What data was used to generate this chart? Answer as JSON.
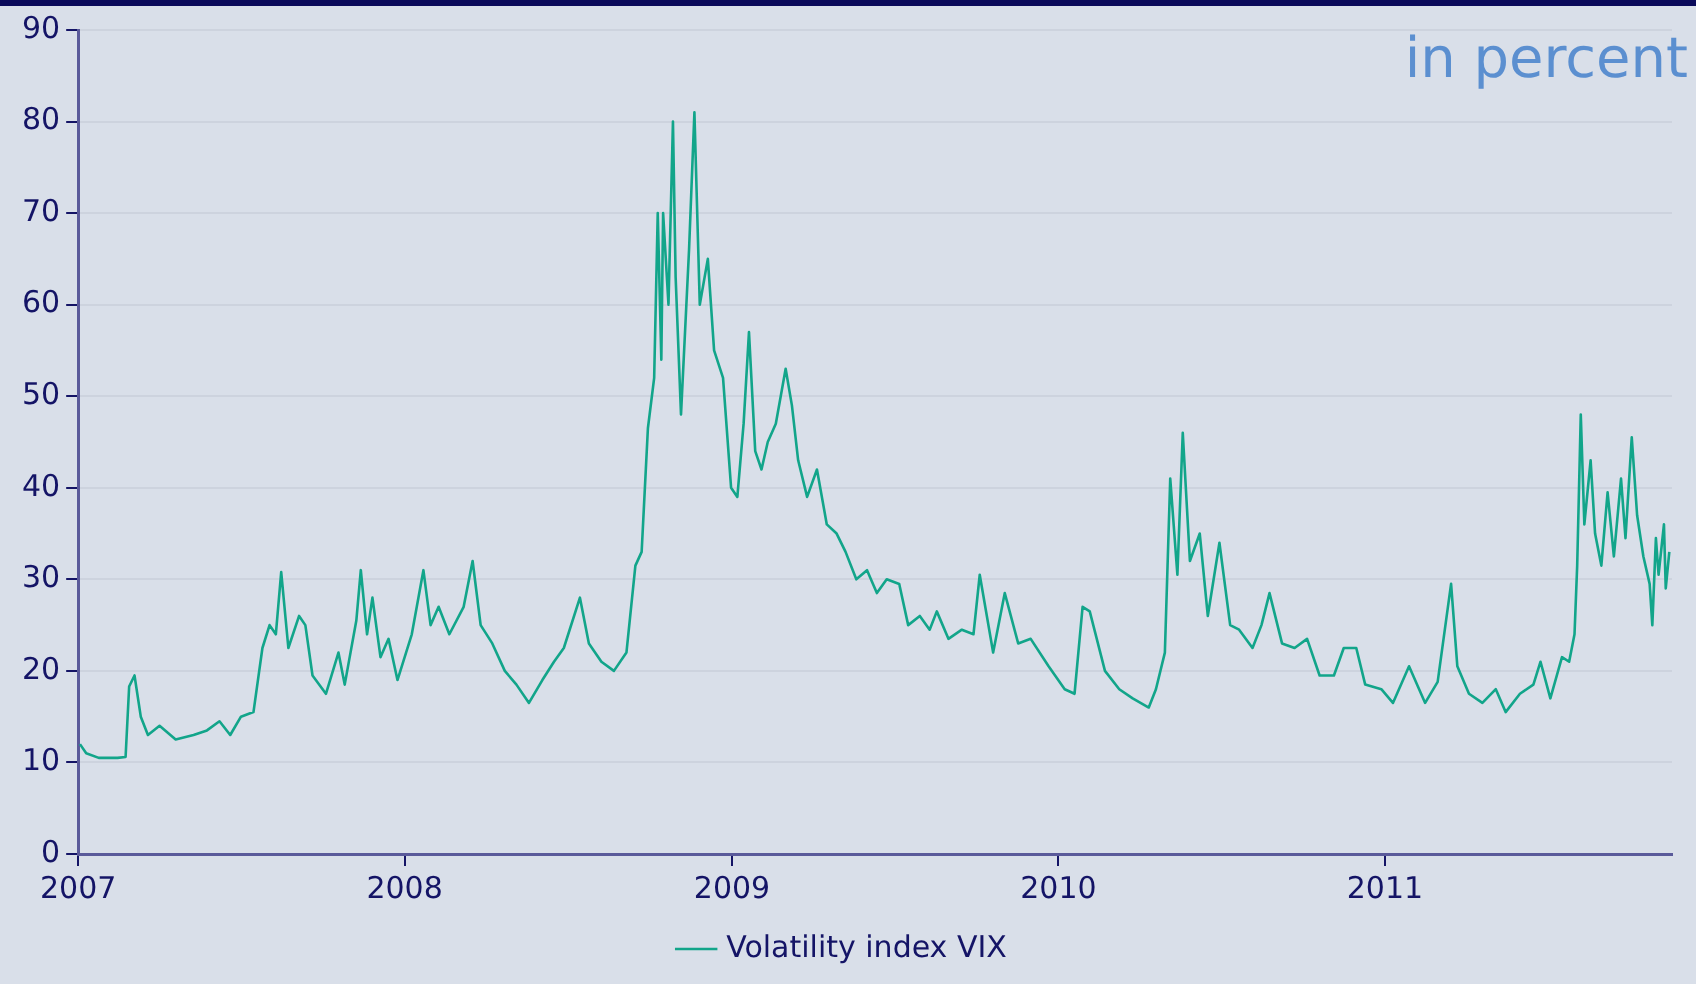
{
  "chart_data": {
    "type": "line",
    "annotations": [
      "in percent"
    ],
    "xlim": [
      "2007-01-01",
      "2011-11-18"
    ],
    "xticks": [
      "2007",
      "2008",
      "2009",
      "2010",
      "2011"
    ],
    "ylim": [
      0,
      90
    ],
    "yticks": [
      0,
      10,
      20,
      30,
      40,
      50,
      60,
      70,
      80,
      90
    ],
    "grid": "y",
    "legend": "bottom",
    "marker": "none",
    "line_style": "solid",
    "series": [
      {
        "name": "Volatility index VIX",
        "color": "#12a58a",
        "x": [
          "2007-01-03",
          "2007-01-10",
          "2007-01-24",
          "2007-02-14",
          "2007-02-23",
          "2007-02-27",
          "2007-03-05",
          "2007-03-12",
          "2007-03-20",
          "2007-04-02",
          "2007-04-20",
          "2007-05-10",
          "2007-05-25",
          "2007-06-08",
          "2007-06-20",
          "2007-07-02",
          "2007-07-16",
          "2007-07-26",
          "2007-08-03",
          "2007-08-10",
          "2007-08-16",
          "2007-08-24",
          "2007-09-05",
          "2007-09-12",
          "2007-09-20",
          "2007-10-05",
          "2007-10-19",
          "2007-10-26",
          "2007-11-08",
          "2007-11-13",
          "2007-11-20",
          "2007-11-26",
          "2007-12-05",
          "2007-12-14",
          "2007-12-24",
          "2008-01-09",
          "2008-01-22",
          "2008-01-30",
          "2008-02-08",
          "2008-02-20",
          "2008-03-07",
          "2008-03-17",
          "2008-03-26",
          "2008-04-08",
          "2008-04-22",
          "2008-05-05",
          "2008-05-19",
          "2008-06-03",
          "2008-06-16",
          "2008-06-27",
          "2008-07-15",
          "2008-07-25",
          "2008-08-08",
          "2008-08-22",
          "2008-09-05",
          "2008-09-15",
          "2008-09-22",
          "2008-09-29",
          "2008-10-06",
          "2008-10-10",
          "2008-10-14",
          "2008-10-16",
          "2008-10-22",
          "2008-10-27",
          "2008-10-30",
          "2008-11-05",
          "2008-11-14",
          "2008-11-20",
          "2008-11-26",
          "2008-12-05",
          "2008-12-12",
          "2008-12-22",
          "2008-12-31",
          "2009-01-07",
          "2009-01-14",
          "2009-01-20",
          "2009-01-27",
          "2009-02-03",
          "2009-02-10",
          "2009-02-19",
          "2009-03-02",
          "2009-03-09",
          "2009-03-16",
          "2009-03-26",
          "2009-04-06",
          "2009-04-17",
          "2009-04-28",
          "2009-05-08",
          "2009-05-20",
          "2009-06-01",
          "2009-06-12",
          "2009-06-23",
          "2009-07-07",
          "2009-07-17",
          "2009-07-30",
          "2009-08-10",
          "2009-08-18",
          "2009-08-31",
          "2009-09-15",
          "2009-09-28",
          "2009-10-05",
          "2009-10-20",
          "2009-11-02",
          "2009-11-17",
          "2009-12-01",
          "2009-12-21",
          "2010-01-08",
          "2010-01-19",
          "2010-01-28",
          "2010-02-05",
          "2010-02-22",
          "2010-03-10",
          "2010-03-25",
          "2010-04-12",
          "2010-04-20",
          "2010-04-30",
          "2010-05-06",
          "2010-05-14",
          "2010-05-20",
          "2010-05-28",
          "2010-06-08",
          "2010-06-17",
          "2010-06-30",
          "2010-07-12",
          "2010-07-22",
          "2010-08-06",
          "2010-08-16",
          "2010-08-25",
          "2010-09-08",
          "2010-09-22",
          "2010-10-06",
          "2010-10-20",
          "2010-11-05",
          "2010-11-16",
          "2010-11-30",
          "2010-12-10",
          "2010-12-28",
          "2011-01-10",
          "2011-01-28",
          "2011-02-15",
          "2011-03-01",
          "2011-03-16",
          "2011-03-23",
          "2011-04-05",
          "2011-04-20",
          "2011-05-05",
          "2011-05-16",
          "2011-06-01",
          "2011-06-16",
          "2011-06-24",
          "2011-07-05",
          "2011-07-18",
          "2011-07-26",
          "2011-08-01",
          "2011-08-04",
          "2011-08-08",
          "2011-08-12",
          "2011-08-19",
          "2011-08-24",
          "2011-08-31",
          "2011-09-07",
          "2011-09-14",
          "2011-09-22",
          "2011-09-27",
          "2011-10-04",
          "2011-10-10",
          "2011-10-17",
          "2011-10-24",
          "2011-10-27",
          "2011-10-31",
          "2011-11-03",
          "2011-11-09",
          "2011-11-11",
          "2011-11-15"
        ],
        "values": [
          12,
          11,
          10.5,
          10.5,
          10.6,
          18.3,
          19.5,
          15,
          13,
          14,
          12.5,
          13,
          13.5,
          14.5,
          13,
          15,
          15.5,
          22.5,
          25,
          24,
          30.8,
          22.5,
          26,
          25,
          19.5,
          17.5,
          22,
          18.5,
          25.5,
          31,
          24,
          28,
          21.5,
          23.5,
          19,
          24,
          31,
          25,
          27,
          24,
          27,
          32,
          25,
          23,
          20,
          18.5,
          16.5,
          19,
          21,
          22.5,
          28,
          23,
          21,
          20,
          22,
          31.5,
          33,
          46.5,
          52,
          70,
          54,
          70,
          60,
          80,
          63,
          48,
          66,
          81,
          60,
          65,
          55,
          52,
          40,
          39,
          47,
          57,
          44,
          42,
          45,
          47,
          53,
          49,
          43,
          39,
          42,
          36,
          35,
          33,
          30,
          31,
          28.5,
          30,
          29.5,
          25,
          26,
          24.5,
          26.5,
          23.5,
          24.5,
          24,
          30.5,
          22,
          28.5,
          23,
          23.5,
          20.5,
          18,
          17.5,
          27,
          26.5,
          20,
          18,
          17,
          16,
          18,
          22,
          41,
          30.5,
          46,
          32,
          35,
          26,
          34,
          25,
          24.5,
          22.5,
          25,
          28.5,
          23,
          22.5,
          23.5,
          19.5,
          19.5,
          22.5,
          22.5,
          18.5,
          18,
          16.5,
          20.5,
          16.5,
          18.8,
          29.5,
          20.5,
          17.5,
          16.5,
          18,
          15.5,
          17.5,
          18.5,
          21,
          17,
          21.5,
          21,
          24,
          31.5,
          48,
          36,
          43,
          35,
          31.5,
          39.5,
          32.5,
          41,
          34.5,
          45.5,
          37,
          32.5,
          29.5,
          25,
          34.5,
          30.5,
          36,
          29,
          33
        ]
      }
    ]
  }
}
